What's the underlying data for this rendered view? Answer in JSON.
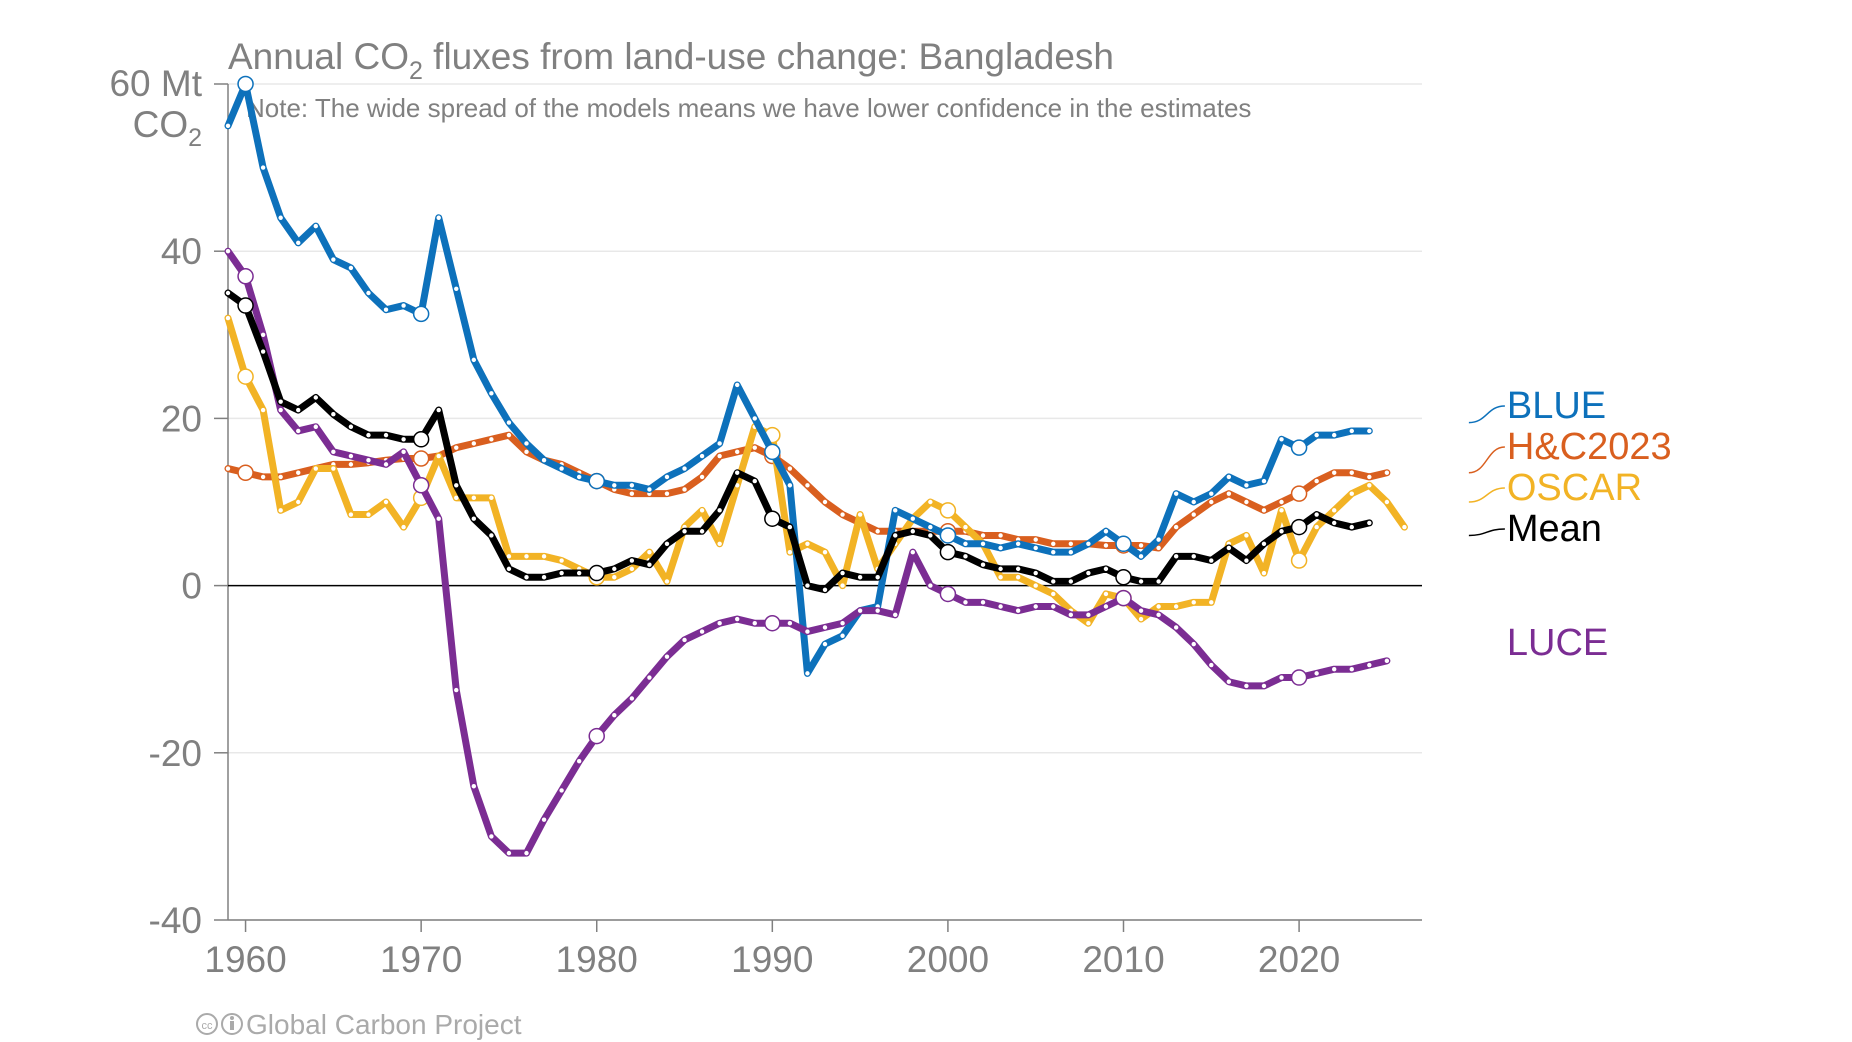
{
  "chart_data": {
    "type": "line",
    "title_main": "Annual CO",
    "title_sub": "2",
    "title_rest": " fluxes from land-use change: Bangladesh",
    "note": "Note: The wide spread of the models means we have lower confidence in the estimates",
    "ylabel_line1": "60 Mt",
    "ylabel_line2_main": "CO",
    "ylabel_line2_sub": "2",
    "credit": "Global Carbon Project",
    "xlim": [
      1959,
      2027
    ],
    "ylim": [
      -40,
      60
    ],
    "yticks": [
      {
        "value": 40,
        "label": "40"
      },
      {
        "value": 20,
        "label": "20"
      },
      {
        "value": 0,
        "label": "0"
      },
      {
        "value": -20,
        "label": "-20"
      },
      {
        "value": -40,
        "label": "-40"
      }
    ],
    "xticks": [
      {
        "value": 1960,
        "label": "1960"
      },
      {
        "value": 1970,
        "label": "1970"
      },
      {
        "value": 1980,
        "label": "1980"
      },
      {
        "value": 1990,
        "label": "1990"
      },
      {
        "value": 2000,
        "label": "2000"
      },
      {
        "value": 2010,
        "label": "2010"
      },
      {
        "value": 2020,
        "label": "2020"
      }
    ],
    "series": [
      {
        "name": "H&C2023",
        "color": "#d95f1f",
        "start": 1959,
        "legend_y": 13.5,
        "values": [
          14,
          13.5,
          13,
          13,
          13.5,
          14,
          14.5,
          14.5,
          14.7,
          15,
          15.2,
          15.2,
          15.5,
          16.5,
          17,
          17.5,
          18,
          16,
          15,
          14.5,
          13.5,
          12.5,
          11.5,
          11,
          11,
          11,
          11.5,
          13,
          15.5,
          16,
          16.5,
          15.5,
          14,
          12,
          10,
          8.5,
          7.5,
          6.5,
          6.5,
          6.5,
          6.5,
          6.5,
          6.5,
          6,
          6,
          5.5,
          5.5,
          5,
          5,
          5,
          4.8,
          4.8,
          4.8,
          4.5,
          7,
          8.5,
          10,
          11,
          10,
          9,
          10,
          11,
          12.5,
          13.5,
          13.5,
          13,
          13.5
        ]
      },
      {
        "name": "OSCAR",
        "color": "#f2b325",
        "start": 1959,
        "legend_y": 10,
        "values": [
          32,
          25,
          21,
          9,
          10,
          14,
          14,
          8.5,
          8.5,
          10,
          7,
          10.5,
          15.5,
          10.5,
          10.5,
          10.5,
          3.5,
          3.5,
          3.5,
          3,
          2,
          1,
          1,
          2,
          4,
          0.5,
          7,
          9,
          5,
          12,
          19,
          18,
          4,
          5,
          4,
          0,
          8.5,
          2,
          5,
          8,
          10,
          9,
          7,
          5,
          1,
          1,
          0,
          -1,
          -3,
          -4.5,
          -1,
          -1.5,
          -4,
          -2.5,
          -2.5,
          -2,
          -2,
          5,
          6,
          1.5,
          9,
          3,
          7,
          9,
          11,
          12,
          10,
          7
        ]
      },
      {
        "name": "Mean",
        "color": "#000000",
        "start": 1959,
        "legend_y": 6,
        "values": [
          35,
          33.5,
          28,
          22,
          21,
          22.5,
          20.5,
          19,
          18,
          18,
          17.5,
          17.5,
          21,
          12,
          8,
          6,
          2,
          1,
          1,
          1.5,
          1.5,
          1.5,
          2,
          3,
          2.5,
          5,
          6.5,
          6.5,
          9,
          13.5,
          12.5,
          8,
          7,
          0,
          -0.5,
          1.5,
          1,
          1,
          6,
          6.5,
          6,
          4,
          3.5,
          2.5,
          2,
          2,
          1.5,
          0.5,
          0.5,
          1.5,
          2,
          1,
          0.5,
          0.5,
          3.5,
          3.5,
          3,
          4.5,
          3,
          5,
          6.5,
          7,
          8.5,
          7.5,
          7,
          7.5
        ]
      },
      {
        "name": "BLUE",
        "color": "#0d71bb",
        "start": 1959,
        "legend_y": 19.5,
        "values": [
          55,
          60,
          50,
          44,
          41,
          43,
          39,
          38,
          35,
          33,
          33.5,
          32.5,
          44,
          35.5,
          27,
          23,
          19.5,
          17,
          15,
          14,
          13,
          12.5,
          12,
          12,
          11.5,
          13,
          14,
          15.5,
          17,
          24,
          20,
          16,
          12,
          -10.5,
          -7,
          -6,
          -3,
          -2.5,
          9,
          8,
          7,
          6,
          5,
          5,
          4.5,
          5,
          4.5,
          4,
          4,
          5,
          6.5,
          5,
          3.5,
          5.5,
          11,
          10,
          11,
          13,
          12,
          12.5,
          17.5,
          16.5,
          18,
          18,
          18.5,
          18.5
        ]
      },
      {
        "name": "LUCE",
        "color": "#7b2d93",
        "start": 1959,
        "legend_y": -9,
        "values": [
          40,
          37,
          30,
          21,
          18.5,
          19,
          16,
          15.5,
          15,
          14.5,
          16,
          12,
          8,
          -12.5,
          -24,
          -30,
          -32,
          -32,
          -28,
          -24.5,
          -21,
          -18,
          -15.5,
          -13.5,
          -11,
          -8.5,
          -6.5,
          -5.5,
          -4.5,
          -4,
          -4.5,
          -4.5,
          -4.5,
          -5.5,
          -5,
          -4.5,
          -3,
          -3,
          -3.5,
          4,
          0,
          -1,
          -2,
          -2,
          -2.5,
          -3,
          -2.5,
          -2.5,
          -3.5,
          -3.5,
          -2.5,
          -1.5,
          -3,
          -3.5,
          -5,
          -7,
          -9.5,
          -11.5,
          -12,
          -12,
          -11,
          -11,
          -10.5,
          -10,
          -10,
          -9.5,
          -9
        ]
      }
    ],
    "legend": [
      {
        "name": "BLUE",
        "color": "#0d71bb"
      },
      {
        "name": "H&C2023",
        "color": "#d95f1f"
      },
      {
        "name": "OSCAR",
        "color": "#f2b325"
      },
      {
        "name": "Mean",
        "color": "#000000"
      },
      {
        "name": "LUCE",
        "color": "#7b2d93"
      }
    ]
  }
}
